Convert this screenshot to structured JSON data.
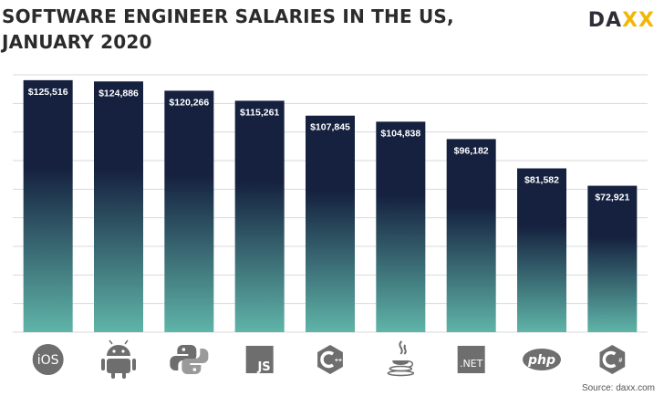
{
  "header": {
    "title_line1": "SOFTWARE ENGINEER SALARIES IN THE US,",
    "title_line2": "JANUARY 2020",
    "logo_text": "DAXX"
  },
  "source": "Source: daxx.com",
  "colors": {
    "bar_top": "#15213f",
    "bar_bottom": "#5fb4a8",
    "grid": "#d9d9d9",
    "icon": "#6e6e6e",
    "logo_accent": "#f2b705"
  },
  "chart_data": {
    "type": "bar",
    "title": "SOFTWARE ENGINEER SALARIES IN THE US, JANUARY 2020",
    "xlabel": "",
    "ylabel": "",
    "categories": [
      "iOS",
      "Android",
      "Python",
      "JavaScript",
      "C++",
      "Java",
      ".NET",
      "PHP",
      "C#"
    ],
    "values": [
      125516,
      124886,
      120266,
      115261,
      107845,
      104838,
      96182,
      81582,
      72921
    ],
    "data_labels": [
      "$125,516",
      "$124,886",
      "$120,266",
      "$115,261",
      "$107,845",
      "$104,838",
      "$96,182",
      "$81,582",
      "$72,921"
    ],
    "icons": [
      "ios-icon",
      "android-icon",
      "python-icon",
      "javascript-icon",
      "cpp-icon",
      "java-icon",
      "dotnet-icon",
      "php-icon",
      "csharp-icon"
    ],
    "icon_text": [
      "iOS",
      "",
      "",
      "JS",
      "",
      "",
      ".NET",
      "php",
      ""
    ],
    "ylim": [
      0,
      130000
    ],
    "grid": true,
    "legend": "none"
  }
}
